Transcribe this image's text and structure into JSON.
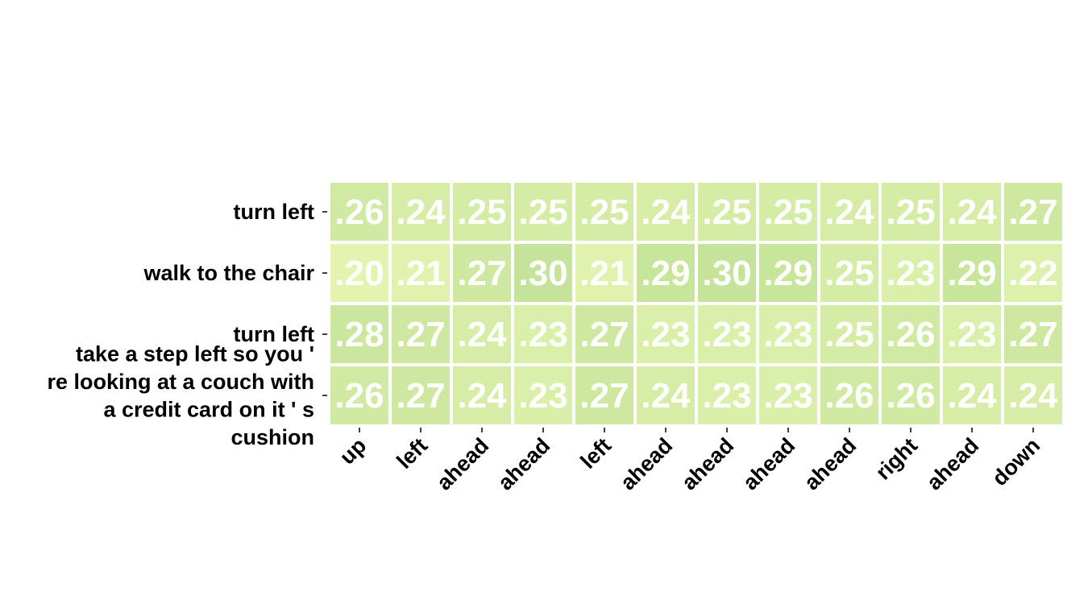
{
  "chart_data": {
    "type": "heatmap",
    "title": "",
    "xlabel": "",
    "ylabel": "",
    "rows": [
      [
        "turn left"
      ],
      [
        "walk to the chair"
      ],
      [
        "turn left"
      ],
      [
        "take a step left so you '",
        "re looking at a couch with",
        "a credit card on it ' s",
        "cushion"
      ]
    ],
    "columns": [
      "up",
      "left",
      "ahead",
      "ahead",
      "left",
      "ahead",
      "ahead",
      "ahead",
      "ahead",
      "right",
      "ahead",
      "down"
    ],
    "values": [
      [
        0.26,
        0.24,
        0.25,
        0.25,
        0.25,
        0.24,
        0.25,
        0.25,
        0.24,
        0.25,
        0.24,
        0.27
      ],
      [
        0.2,
        0.21,
        0.27,
        0.3,
        0.21,
        0.29,
        0.3,
        0.29,
        0.25,
        0.23,
        0.29,
        0.22
      ],
      [
        0.28,
        0.27,
        0.24,
        0.23,
        0.27,
        0.23,
        0.23,
        0.23,
        0.25,
        0.26,
        0.23,
        0.27
      ],
      [
        0.26,
        0.27,
        0.24,
        0.23,
        0.27,
        0.24,
        0.23,
        0.23,
        0.26,
        0.26,
        0.24,
        0.24
      ]
    ],
    "value_labels": [
      [
        ".26",
        ".24",
        ".25",
        ".25",
        ".25",
        ".24",
        ".25",
        ".25",
        ".24",
        ".25",
        ".24",
        ".27"
      ],
      [
        ".20",
        ".21",
        ".27",
        ".30",
        ".21",
        ".29",
        ".30",
        ".29",
        ".25",
        ".23",
        ".29",
        ".22"
      ],
      [
        ".28",
        ".27",
        ".24",
        ".23",
        ".27",
        ".23",
        ".23",
        ".23",
        ".25",
        ".26",
        ".23",
        ".27"
      ],
      [
        ".26",
        ".27",
        ".24",
        ".23",
        ".27",
        ".24",
        ".23",
        ".23",
        ".26",
        ".26",
        ".24",
        ".24"
      ]
    ],
    "color_range": [
      0.2,
      0.3
    ],
    "colormap": [
      "#e3f4b0",
      "#c5e39a"
    ],
    "grid": false,
    "legend": "none"
  }
}
